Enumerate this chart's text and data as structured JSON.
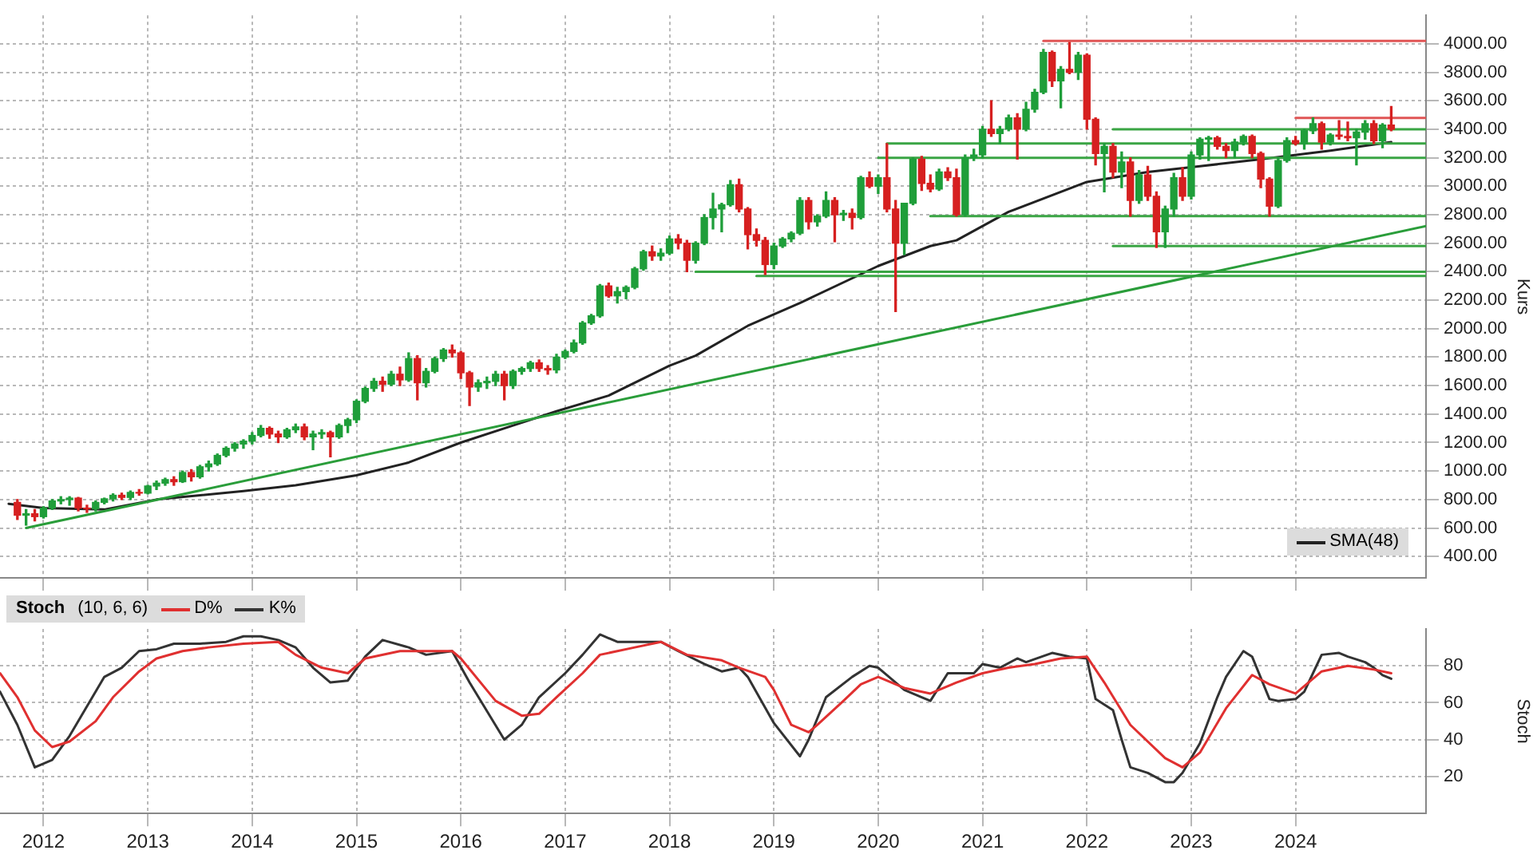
{
  "chart_data": [
    {
      "type": "candlestick",
      "ylabel": "Kurs",
      "x": [
        "2011-10",
        "2011-11",
        "2011-12",
        "2012-01",
        "2012-02",
        "2012-03",
        "2012-04",
        "2012-05",
        "2012-06",
        "2012-07",
        "2012-08",
        "2012-09",
        "2012-10",
        "2012-11",
        "2012-12",
        "2013-01",
        "2013-02",
        "2013-03",
        "2013-04",
        "2013-05",
        "2013-06",
        "2013-07",
        "2013-08",
        "2013-09",
        "2013-10",
        "2013-11",
        "2013-12",
        "2014-01",
        "2014-02",
        "2014-03",
        "2014-04",
        "2014-05",
        "2014-06",
        "2014-07",
        "2014-08",
        "2014-09",
        "2014-10",
        "2014-11",
        "2014-12",
        "2015-01",
        "2015-02",
        "2015-03",
        "2015-04",
        "2015-05",
        "2015-06",
        "2015-07",
        "2015-08",
        "2015-09",
        "2015-10",
        "2015-11",
        "2015-12",
        "2016-01",
        "2016-02",
        "2016-03",
        "2016-04",
        "2016-05",
        "2016-06",
        "2016-07",
        "2016-08",
        "2016-09",
        "2016-10",
        "2016-11",
        "2016-12",
        "2017-01",
        "2017-02",
        "2017-03",
        "2017-04",
        "2017-05",
        "2017-06",
        "2017-07",
        "2017-08",
        "2017-09",
        "2017-10",
        "2017-11",
        "2017-12",
        "2018-01",
        "2018-02",
        "2018-03",
        "2018-04",
        "2018-05",
        "2018-06",
        "2018-07",
        "2018-08",
        "2018-09",
        "2018-10",
        "2018-11",
        "2018-12",
        "2019-01",
        "2019-02",
        "2019-03",
        "2019-04",
        "2019-05",
        "2019-06",
        "2019-07",
        "2019-08",
        "2019-09",
        "2019-10",
        "2019-11",
        "2019-12",
        "2020-01",
        "2020-02",
        "2020-03",
        "2020-04",
        "2020-05",
        "2020-06",
        "2020-07",
        "2020-08",
        "2020-09",
        "2020-10",
        "2020-11",
        "2020-12",
        "2021-01",
        "2021-02",
        "2021-03",
        "2021-04",
        "2021-05",
        "2021-06",
        "2021-07",
        "2021-08",
        "2021-09",
        "2021-10",
        "2021-11",
        "2021-12",
        "2022-01",
        "2022-02",
        "2022-03",
        "2022-04",
        "2022-05",
        "2022-06",
        "2022-07",
        "2022-08",
        "2022-09",
        "2022-10",
        "2022-11",
        "2022-12",
        "2023-01",
        "2023-02",
        "2023-03",
        "2023-04",
        "2023-05",
        "2023-06",
        "2023-07",
        "2023-08",
        "2023-09",
        "2023-10",
        "2023-11",
        "2023-12",
        "2024-01",
        "2024-02",
        "2024-03",
        "2024-04",
        "2024-05",
        "2024-06",
        "2024-07",
        "2024-08",
        "2024-09",
        "2024-10",
        "2024-11",
        "2024-12"
      ],
      "ohlc": [
        [
          780,
          800,
          660,
          690
        ],
        [
          690,
          730,
          620,
          700
        ],
        [
          700,
          730,
          650,
          680
        ],
        [
          680,
          750,
          670,
          740
        ],
        [
          740,
          800,
          730,
          790
        ],
        [
          790,
          820,
          770,
          800
        ],
        [
          800,
          820,
          760,
          810
        ],
        [
          810,
          815,
          720,
          740
        ],
        [
          740,
          760,
          710,
          735
        ],
        [
          735,
          790,
          720,
          780
        ],
        [
          780,
          810,
          770,
          805
        ],
        [
          805,
          840,
          790,
          830
        ],
        [
          830,
          845,
          800,
          815
        ],
        [
          815,
          860,
          800,
          850
        ],
        [
          850,
          870,
          830,
          845
        ],
        [
          845,
          900,
          840,
          895
        ],
        [
          895,
          930,
          870,
          915
        ],
        [
          915,
          950,
          900,
          940
        ],
        [
          940,
          960,
          900,
          925
        ],
        [
          925,
          1000,
          920,
          990
        ],
        [
          990,
          1010,
          930,
          960
        ],
        [
          960,
          1040,
          950,
          1030
        ],
        [
          1030,
          1070,
          1000,
          1050
        ],
        [
          1050,
          1120,
          1040,
          1110
        ],
        [
          1110,
          1170,
          1100,
          1160
        ],
        [
          1160,
          1200,
          1140,
          1190
        ],
        [
          1190,
          1220,
          1160,
          1210
        ],
        [
          1210,
          1270,
          1190,
          1250
        ],
        [
          1250,
          1320,
          1240,
          1300
        ],
        [
          1300,
          1310,
          1230,
          1260
        ],
        [
          1260,
          1280,
          1200,
          1240
        ],
        [
          1240,
          1300,
          1230,
          1290
        ],
        [
          1290,
          1330,
          1270,
          1310
        ],
        [
          1310,
          1330,
          1220,
          1240
        ],
        [
          1240,
          1280,
          1150,
          1260
        ],
        [
          1260,
          1290,
          1230,
          1270
        ],
        [
          1270,
          1280,
          1100,
          1240
        ],
        [
          1240,
          1330,
          1230,
          1320
        ],
        [
          1320,
          1370,
          1270,
          1360
        ],
        [
          1360,
          1500,
          1340,
          1490
        ],
        [
          1490,
          1590,
          1480,
          1580
        ],
        [
          1580,
          1650,
          1560,
          1630
        ],
        [
          1630,
          1660,
          1560,
          1610
        ],
        [
          1610,
          1700,
          1600,
          1680
        ],
        [
          1680,
          1730,
          1600,
          1640
        ],
        [
          1640,
          1830,
          1630,
          1790
        ],
        [
          1790,
          1810,
          1500,
          1620
        ],
        [
          1620,
          1720,
          1590,
          1700
        ],
        [
          1700,
          1800,
          1690,
          1790
        ],
        [
          1790,
          1860,
          1770,
          1850
        ],
        [
          1850,
          1885,
          1800,
          1830
        ],
        [
          1830,
          1840,
          1650,
          1690
        ],
        [
          1690,
          1700,
          1460,
          1590
        ],
        [
          1590,
          1640,
          1560,
          1620
        ],
        [
          1620,
          1660,
          1580,
          1630
        ],
        [
          1630,
          1700,
          1600,
          1680
        ],
        [
          1680,
          1700,
          1500,
          1600
        ],
        [
          1600,
          1710,
          1580,
          1700
        ],
        [
          1700,
          1730,
          1680,
          1720
        ],
        [
          1720,
          1770,
          1700,
          1760
        ],
        [
          1760,
          1780,
          1700,
          1720
        ],
        [
          1720,
          1740,
          1680,
          1710
        ],
        [
          1710,
          1820,
          1690,
          1800
        ],
        [
          1800,
          1850,
          1790,
          1840
        ],
        [
          1840,
          1920,
          1830,
          1900
        ],
        [
          1900,
          2050,
          1890,
          2040
        ],
        [
          2040,
          2100,
          2030,
          2090
        ],
        [
          2090,
          2310,
          2080,
          2300
        ],
        [
          2300,
          2320,
          2220,
          2230
        ],
        [
          2230,
          2290,
          2180,
          2260
        ],
        [
          2260,
          2300,
          2210,
          2290
        ],
        [
          2290,
          2430,
          2280,
          2420
        ],
        [
          2420,
          2550,
          2410,
          2540
        ],
        [
          2540,
          2580,
          2480,
          2510
        ],
        [
          2510,
          2560,
          2480,
          2530
        ],
        [
          2530,
          2650,
          2520,
          2630
        ],
        [
          2630,
          2660,
          2560,
          2600
        ],
        [
          2600,
          2620,
          2400,
          2480
        ],
        [
          2480,
          2610,
          2460,
          2600
        ],
        [
          2600,
          2800,
          2590,
          2780
        ],
        [
          2780,
          2950,
          2700,
          2840
        ],
        [
          2840,
          2880,
          2680,
          2870
        ],
        [
          2870,
          3040,
          2860,
          3010
        ],
        [
          3010,
          3050,
          2820,
          2840
        ],
        [
          2840,
          2850,
          2560,
          2660
        ],
        [
          2660,
          2700,
          2580,
          2620
        ],
        [
          2620,
          2640,
          2380,
          2450
        ],
        [
          2450,
          2600,
          2420,
          2580
        ],
        [
          2580,
          2640,
          2570,
          2630
        ],
        [
          2630,
          2680,
          2610,
          2670
        ],
        [
          2670,
          2920,
          2660,
          2900
        ],
        [
          2900,
          2920,
          2700,
          2750
        ],
        [
          2750,
          2800,
          2720,
          2790
        ],
        [
          2790,
          2960,
          2780,
          2900
        ],
        [
          2900,
          2920,
          2610,
          2800
        ],
        [
          2800,
          2830,
          2760,
          2810
        ],
        [
          2810,
          2840,
          2700,
          2780
        ],
        [
          2780,
          3070,
          2770,
          3060
        ],
        [
          3060,
          3100,
          2990,
          3000
        ],
        [
          3000,
          3080,
          2950,
          3060
        ],
        [
          3060,
          3300,
          2820,
          2840
        ],
        [
          2840,
          2900,
          2120,
          2600
        ],
        [
          2600,
          2880,
          2520,
          2880
        ],
        [
          2880,
          3200,
          2870,
          3190
        ],
        [
          3190,
          3210,
          2970,
          3020
        ],
        [
          3020,
          3080,
          2960,
          2980
        ],
        [
          2980,
          3120,
          2970,
          3100
        ],
        [
          3100,
          3130,
          3040,
          3060
        ],
        [
          3060,
          3120,
          2790,
          2800
        ],
        [
          2800,
          3220,
          2790,
          3200
        ],
        [
          3200,
          3260,
          3180,
          3220
        ],
        [
          3220,
          3420,
          3200,
          3400
        ],
        [
          3400,
          3600,
          3350,
          3370
        ],
        [
          3370,
          3420,
          3300,
          3400
        ],
        [
          3400,
          3500,
          3390,
          3480
        ],
        [
          3480,
          3510,
          3190,
          3400
        ],
        [
          3400,
          3590,
          3390,
          3540
        ],
        [
          3540,
          3680,
          3520,
          3660
        ],
        [
          3660,
          3960,
          3650,
          3940
        ],
        [
          3940,
          3950,
          3700,
          3740
        ],
        [
          3740,
          3840,
          3550,
          3820
        ],
        [
          3820,
          4010,
          3790,
          3800
        ],
        [
          3800,
          3940,
          3750,
          3920
        ],
        [
          3920,
          3930,
          3400,
          3470
        ],
        [
          3470,
          3480,
          3150,
          3230
        ],
        [
          3230,
          3300,
          2960,
          3280
        ],
        [
          3280,
          3300,
          3060,
          3100
        ],
        [
          3100,
          3240,
          2990,
          3170
        ],
        [
          3170,
          3200,
          2790,
          2900
        ],
        [
          2900,
          3110,
          2880,
          3080
        ],
        [
          3080,
          3140,
          2900,
          2930
        ],
        [
          2930,
          2960,
          2570,
          2680
        ],
        [
          2680,
          2860,
          2570,
          2840
        ],
        [
          2840,
          3090,
          2790,
          3060
        ],
        [
          3060,
          3130,
          2900,
          2930
        ],
        [
          2930,
          3240,
          2910,
          3220
        ],
        [
          3220,
          3340,
          3190,
          3330
        ],
        [
          3330,
          3350,
          3180,
          3340
        ],
        [
          3340,
          3350,
          3260,
          3280
        ],
        [
          3280,
          3300,
          3200,
          3250
        ],
        [
          3250,
          3330,
          3200,
          3310
        ],
        [
          3310,
          3360,
          3290,
          3350
        ],
        [
          3350,
          3360,
          3200,
          3230
        ],
        [
          3230,
          3240,
          2990,
          3050
        ],
        [
          3050,
          3060,
          2790,
          2860
        ],
        [
          2860,
          3200,
          2850,
          3180
        ],
        [
          3180,
          3340,
          3170,
          3320
        ],
        [
          3320,
          3350,
          3290,
          3300
        ],
        [
          3300,
          3400,
          3260,
          3390
        ],
        [
          3390,
          3480,
          3370,
          3440
        ],
        [
          3440,
          3450,
          3260,
          3310
        ],
        [
          3310,
          3370,
          3290,
          3360
        ],
        [
          3360,
          3460,
          3330,
          3350
        ],
        [
          3350,
          3450,
          3320,
          3340
        ],
        [
          3340,
          3400,
          3150,
          3380
        ],
        [
          3380,
          3460,
          3330,
          3440
        ],
        [
          3440,
          3460,
          3300,
          3320
        ],
        [
          3320,
          3440,
          3270,
          3430
        ],
        [
          3430,
          3560,
          3390,
          3400
        ]
      ],
      "colors": [
        "#d62020",
        "#1f9e3a",
        "#d62020",
        "#1f9e3a",
        "#1f9e3a",
        "#1f9e3a",
        "#1f9e3a",
        "#d62020",
        "#d62020",
        "#1f9e3a",
        "#1f9e3a",
        "#1f9e3a",
        "#d62020",
        "#1f9e3a",
        "#d62020",
        "#1f9e3a",
        "#1f9e3a",
        "#1f9e3a",
        "#d62020",
        "#1f9e3a",
        "#d62020",
        "#1f9e3a",
        "#1f9e3a",
        "#1f9e3a",
        "#1f9e3a",
        "#1f9e3a",
        "#1f9e3a",
        "#1f9e3a",
        "#1f9e3a",
        "#d62020",
        "#d62020",
        "#1f9e3a",
        "#1f9e3a",
        "#d62020",
        "#1f9e3a",
        "#1f9e3a",
        "#d62020",
        "#1f9e3a",
        "#1f9e3a",
        "#1f9e3a",
        "#1f9e3a",
        "#1f9e3a",
        "#d62020",
        "#1f9e3a",
        "#d62020",
        "#1f9e3a",
        "#d62020",
        "#1f9e3a",
        "#1f9e3a",
        "#1f9e3a",
        "#d62020",
        "#d62020",
        "#d62020",
        "#1f9e3a",
        "#1f9e3a",
        "#1f9e3a",
        "#d62020",
        "#1f9e3a",
        "#1f9e3a",
        "#1f9e3a",
        "#d62020",
        "#d62020",
        "#1f9e3a",
        "#1f9e3a",
        "#1f9e3a",
        "#1f9e3a",
        "#1f9e3a",
        "#1f9e3a",
        "#d62020",
        "#1f9e3a",
        "#1f9e3a",
        "#1f9e3a",
        "#1f9e3a",
        "#d62020",
        "#1f9e3a",
        "#1f9e3a",
        "#d62020",
        "#d62020",
        "#1f9e3a",
        "#1f9e3a",
        "#1f9e3a",
        "#1f9e3a",
        "#1f9e3a",
        "#d62020",
        "#d62020",
        "#d62020",
        "#d62020",
        "#1f9e3a",
        "#1f9e3a",
        "#1f9e3a",
        "#1f9e3a",
        "#d62020",
        "#1f9e3a",
        "#1f9e3a",
        "#d62020",
        "#1f9e3a",
        "#d62020",
        "#1f9e3a",
        "#d62020",
        "#1f9e3a",
        "#d62020",
        "#d62020",
        "#1f9e3a",
        "#1f9e3a",
        "#d62020",
        "#d62020",
        "#1f9e3a",
        "#d62020",
        "#d62020",
        "#1f9e3a",
        "#1f9e3a",
        "#1f9e3a",
        "#d62020",
        "#1f9e3a",
        "#1f9e3a",
        "#d62020",
        "#1f9e3a",
        "#1f9e3a",
        "#1f9e3a",
        "#d62020",
        "#1f9e3a",
        "#d62020",
        "#1f9e3a",
        "#d62020",
        "#d62020",
        "#1f9e3a",
        "#d62020",
        "#1f9e3a",
        "#d62020",
        "#1f9e3a",
        "#d62020",
        "#d62020",
        "#1f9e3a",
        "#1f9e3a",
        "#d62020",
        "#1f9e3a",
        "#1f9e3a",
        "#1f9e3a",
        "#d62020",
        "#d62020",
        "#1f9e3a",
        "#1f9e3a",
        "#d62020",
        "#d62020",
        "#d62020",
        "#1f9e3a",
        "#1f9e3a",
        "#d62020",
        "#1f9e3a",
        "#1f9e3a",
        "#d62020",
        "#1f9e3a",
        "#d62020",
        "#d62020",
        "#1f9e3a",
        "#1f9e3a",
        "#d62020",
        "#1f9e3a",
        "#d62020"
      ],
      "series": [
        {
          "type": "line",
          "color": "#2a9d3a",
          "x": [
            "2011-11",
            "2025-04"
          ],
          "values": [
            600,
            2720
          ]
        },
        {
          "type": "line",
          "color": "#e05555",
          "x": [
            "2021-08",
            "2025-04"
          ],
          "values": [
            4020,
            4020
          ]
        },
        {
          "type": "line",
          "color": "#e05555",
          "x": [
            "2024-01",
            "2025-04"
          ],
          "values": [
            3480,
            3480
          ]
        },
        {
          "type": "line",
          "color": "#3aa544",
          "x": [
            "2022-04",
            "2025-04"
          ],
          "values": [
            3400,
            3400
          ]
        },
        {
          "type": "line",
          "color": "#3aa544",
          "x": [
            "2020-02",
            "2025-04"
          ],
          "values": [
            3300,
            3300
          ]
        },
        {
          "type": "line",
          "color": "#3aa544",
          "x": [
            "2020-01",
            "2025-04"
          ],
          "values": [
            3200,
            3200
          ]
        },
        {
          "type": "line",
          "color": "#3aa544",
          "x": [
            "2020-07",
            "2025-04"
          ],
          "values": [
            2790,
            2790
          ]
        },
        {
          "type": "line",
          "color": "#3aa544",
          "x": [
            "2022-04",
            "2025-04"
          ],
          "values": [
            2580,
            2580
          ]
        },
        {
          "type": "line",
          "color": "#3aa544",
          "x": [
            "2018-04",
            "2025-04"
          ],
          "values": [
            2400,
            2400
          ]
        },
        {
          "type": "line",
          "color": "#3aa544",
          "x": [
            "2018-11",
            "2025-04"
          ],
          "values": [
            2370,
            2370
          ]
        },
        {
          "type": "line",
          "name": "SMA(48)",
          "color": "#222222",
          "x": [
            "2011-09",
            "2012-01",
            "2012-08",
            "2013-02",
            "2013-12",
            "2014-06",
            "2015-01",
            "2015-07",
            "2016-01",
            "2016-07",
            "2016-12",
            "2017-06",
            "2018-01",
            "2018-04",
            "2018-10",
            "2019-04",
            "2020-01",
            "2020-07",
            "2020-10",
            "2021-04",
            "2022-01",
            "2022-08",
            "2023-02",
            "2023-09",
            "2024-05",
            "2024-12"
          ],
          "values": [
            770,
            740,
            730,
            800,
            860,
            900,
            970,
            1060,
            1200,
            1320,
            1420,
            1530,
            1740,
            1810,
            2020,
            2180,
            2440,
            2580,
            2620,
            2820,
            3030,
            3100,
            3140,
            3190,
            3250,
            3310
          ]
        }
      ],
      "xlim": [
        "2011-08",
        "2025-04"
      ],
      "xticks": [
        "2012",
        "2013",
        "2014",
        "2015",
        "2016",
        "2017",
        "2018",
        "2019",
        "2020",
        "2021",
        "2022",
        "2023",
        "2024"
      ],
      "ylim": [
        250,
        4200
      ],
      "yticks": [
        {
          "value": 400,
          "label": "400.00"
        },
        {
          "value": 600,
          "label": "600.00"
        },
        {
          "value": 800,
          "label": "800.00"
        },
        {
          "value": 1000,
          "label": "1000.00"
        },
        {
          "value": 1200,
          "label": "1200.00"
        },
        {
          "value": 1400,
          "label": "1400.00"
        },
        {
          "value": 1600,
          "label": "1600.00"
        },
        {
          "value": 1800,
          "label": "1800.00"
        },
        {
          "value": 2000,
          "label": "2000.00"
        },
        {
          "value": 2200,
          "label": "2200.00"
        },
        {
          "value": 2400,
          "label": "2400.00"
        },
        {
          "value": 2600,
          "label": "2600.00"
        },
        {
          "value": 2800,
          "label": "2800.00"
        },
        {
          "value": 3000,
          "label": "3000.00"
        },
        {
          "value": 3200,
          "label": "3200.00"
        },
        {
          "value": 3400,
          "label": "3400.00"
        },
        {
          "value": 3600,
          "label": "3600.00"
        },
        {
          "value": 3800,
          "label": "3800.00"
        },
        {
          "value": 4000,
          "label": "4000.00"
        }
      ],
      "grid": true,
      "legend": "bottom right",
      "tick_labels": "y",
      "marker": "none"
    },
    {
      "type": "line",
      "title": "Stoch",
      "subtitle": "(10, 6, 6)",
      "ylabel": "Stoch",
      "series": [
        {
          "name": "D%",
          "color": "#e03030",
          "x": [
            "2011-08",
            "2011-10",
            "2011-12",
            "2012-02",
            "2012-04",
            "2012-07",
            "2012-09",
            "2012-12",
            "2013-02",
            "2013-05",
            "2013-08",
            "2013-12",
            "2014-04",
            "2014-06",
            "2014-09",
            "2014-12",
            "2015-02",
            "2015-06",
            "2015-12",
            "2016-01",
            "2016-05",
            "2016-08",
            "2016-10",
            "2016-12",
            "2017-03",
            "2017-05",
            "2017-09",
            "2017-12",
            "2018-03",
            "2018-07",
            "2018-09",
            "2018-12",
            "2019-01",
            "2019-03",
            "2019-05",
            "2019-06",
            "2019-09",
            "2019-11",
            "2020-01",
            "2020-04",
            "2020-07",
            "2020-10",
            "2021-01",
            "2021-04",
            "2021-07",
            "2021-10",
            "2022-01",
            "2022-03",
            "2022-06",
            "2022-10",
            "2022-12",
            "2023-02",
            "2023-05",
            "2023-08",
            "2023-10",
            "2024-01",
            "2024-04",
            "2024-07",
            "2024-10",
            "2024-12"
          ],
          "values": [
            76,
            63,
            45,
            36,
            39,
            50,
            63,
            77,
            84,
            88,
            90,
            92,
            93,
            86,
            79,
            76,
            84,
            88,
            88,
            84,
            61,
            53,
            54,
            63,
            76,
            86,
            90,
            93,
            86,
            83,
            79,
            74,
            67,
            48,
            44,
            48,
            61,
            70,
            74,
            68,
            65,
            71,
            76,
            79,
            81,
            84,
            85,
            71,
            48,
            30,
            25,
            33,
            57,
            75,
            70,
            65,
            77,
            80,
            78,
            76
          ]
        },
        {
          "name": "K%",
          "color": "#333333",
          "x": [
            "2011-08",
            "2011-10",
            "2011-12",
            "2012-02",
            "2012-04",
            "2012-06",
            "2012-08",
            "2012-10",
            "2012-12",
            "2013-02",
            "2013-04",
            "2013-07",
            "2013-10",
            "2013-12",
            "2014-02",
            "2014-04",
            "2014-06",
            "2014-08",
            "2014-10",
            "2014-12",
            "2015-02",
            "2015-04",
            "2015-07",
            "2015-09",
            "2015-12",
            "2016-02",
            "2016-06",
            "2016-08",
            "2016-10",
            "2017-01",
            "2017-03",
            "2017-05",
            "2017-07",
            "2017-09",
            "2017-12",
            "2018-02",
            "2018-05",
            "2018-07",
            "2018-09",
            "2018-10",
            "2019-01",
            "2019-04",
            "2019-05",
            "2019-07",
            "2019-10",
            "2019-12",
            "2020-01",
            "2020-04",
            "2020-06",
            "2020-07",
            "2020-09",
            "2020-12",
            "2021-01",
            "2021-03",
            "2021-05",
            "2021-06",
            "2021-09",
            "2021-11",
            "2022-01",
            "2022-02",
            "2022-04",
            "2022-05",
            "2022-06",
            "2022-08",
            "2022-10",
            "2022-11",
            "2022-12",
            "2023-02",
            "2023-04",
            "2023-05",
            "2023-07",
            "2023-08",
            "2023-10",
            "2023-11",
            "2024-01",
            "2024-02",
            "2024-03",
            "2024-04",
            "2024-06",
            "2024-07",
            "2024-09",
            "2024-10",
            "2024-11",
            "2024-12"
          ],
          "values": [
            66,
            48,
            25,
            29,
            42,
            58,
            74,
            79,
            88,
            89,
            92,
            92,
            93,
            96,
            96,
            94,
            90,
            79,
            71,
            72,
            85,
            94,
            90,
            86,
            88,
            71,
            40,
            48,
            63,
            76,
            86,
            97,
            93,
            93,
            93,
            88,
            81,
            77,
            79,
            74,
            49,
            31,
            40,
            63,
            74,
            80,
            79,
            67,
            63,
            61,
            76,
            76,
            81,
            79,
            84,
            82,
            87,
            85,
            84,
            62,
            56,
            40,
            25,
            22,
            17,
            17,
            22,
            38,
            63,
            74,
            88,
            85,
            62,
            61,
            62,
            66,
            76,
            86,
            87,
            85,
            82,
            79,
            75,
            73
          ]
        }
      ],
      "xlim": [
        "2011-08",
        "2025-04"
      ],
      "xticks": [
        "2012",
        "2013",
        "2014",
        "2015",
        "2016",
        "2017",
        "2018",
        "2019",
        "2020",
        "2021",
        "2022",
        "2023",
        "2024"
      ],
      "ylim": [
        0,
        100
      ],
      "yticks": [
        20,
        40,
        60,
        80
      ],
      "grid": true,
      "legend": "top left",
      "marker": "none"
    }
  ]
}
